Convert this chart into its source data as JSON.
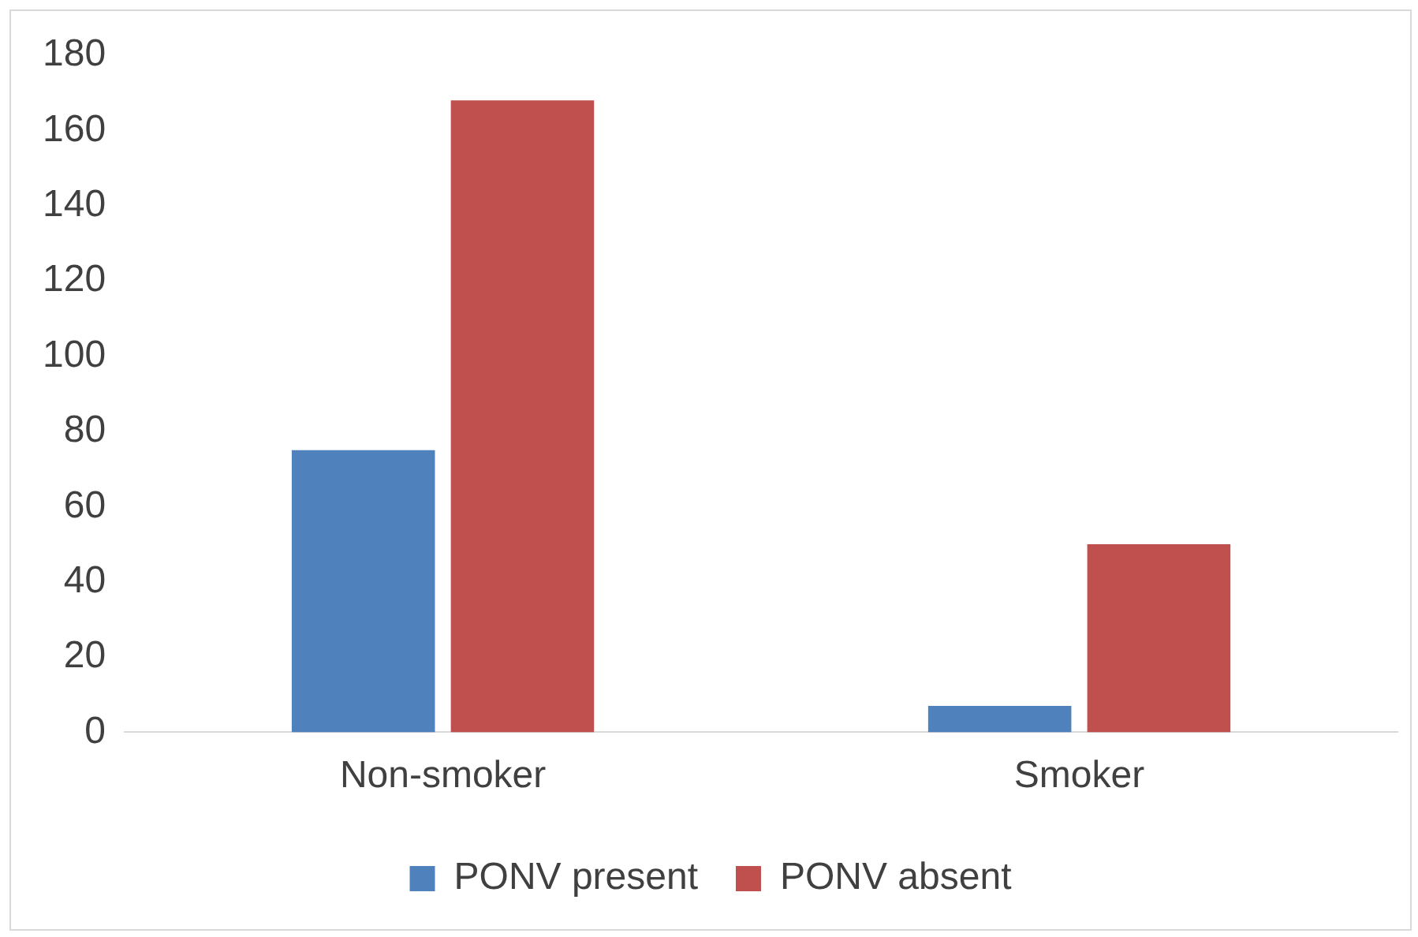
{
  "chart_data": {
    "type": "bar",
    "categories": [
      "Non-smoker",
      "Smoker"
    ],
    "series": [
      {
        "name": "PONV present",
        "color": "#4f81bd",
        "values": [
          75,
          7
        ]
      },
      {
        "name": "PONV absent",
        "color": "#c0504d",
        "values": [
          168,
          50
        ]
      }
    ],
    "ylim": [
      0,
      180
    ],
    "yticks": [
      0,
      20,
      40,
      60,
      80,
      100,
      120,
      140,
      160,
      180
    ],
    "grid": false,
    "legend": "bottom"
  }
}
